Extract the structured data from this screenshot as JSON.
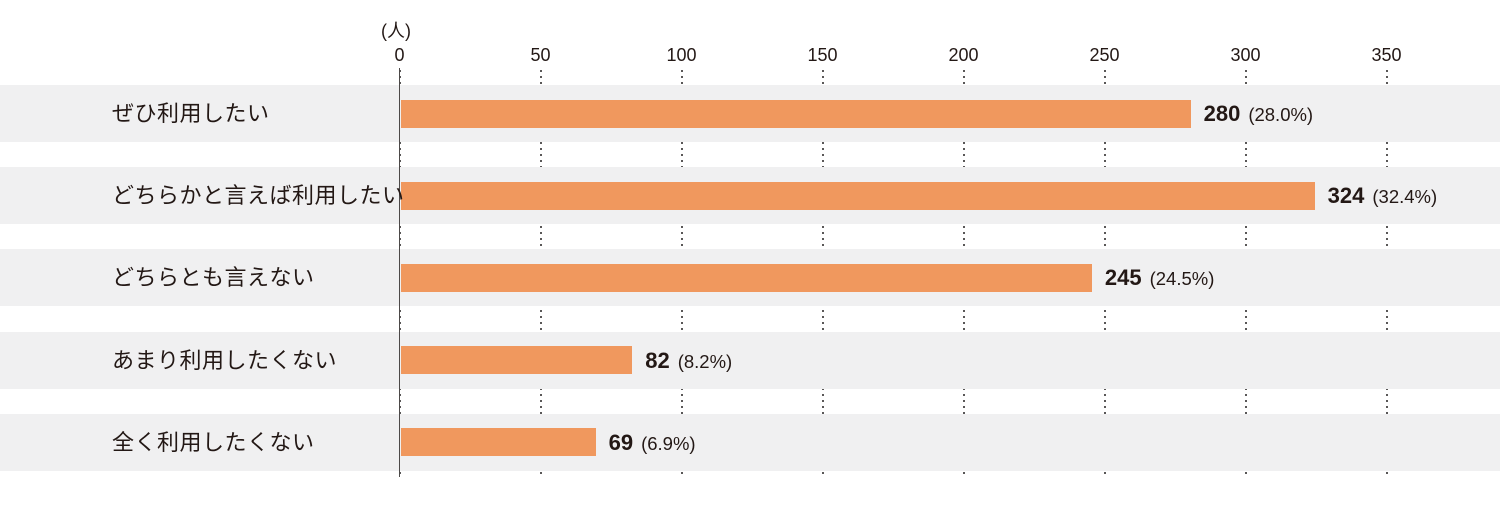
{
  "chart_data": {
    "type": "bar",
    "orientation": "horizontal",
    "title": "",
    "unit_label": "(人)",
    "categories": [
      "ぜひ利用したい",
      "どちらかと言えば利用したい",
      "どちらとも言えない",
      "あまり利用したくない",
      "全く利用したくない"
    ],
    "values": [
      280,
      324,
      245,
      82,
      69
    ],
    "percent_labels": [
      "(28.0%)",
      "(32.4%)",
      "(24.5%)",
      "(8.2%)",
      "(6.9%)"
    ],
    "x_ticks": [
      0,
      50,
      100,
      150,
      200,
      250,
      300,
      350
    ],
    "xlim": [
      0,
      350
    ],
    "xlabel": "",
    "ylabel": "",
    "grid": "dotted-vertical",
    "legend": null,
    "colors": {
      "bar": "#F0985E",
      "row_band": "#F0F0F1",
      "text": "#231815",
      "axis": "#4C4948",
      "grid": "#595757",
      "background": "#FFFFFF"
    }
  }
}
